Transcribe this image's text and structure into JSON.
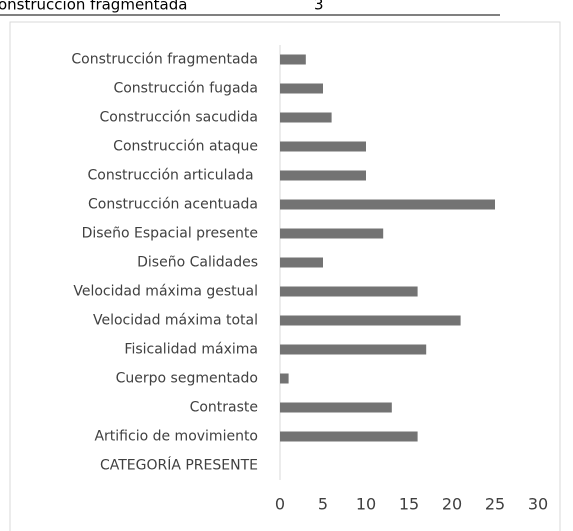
{
  "header": {
    "cells": [
      "onstrucción fragmentada",
      "3"
    ]
  },
  "chart_data": {
    "type": "bar",
    "orientation": "horizontal",
    "categories": [
      "Construcción fragmentada",
      "Construcción fugada",
      "Construcción sacudida",
      "Construcción ataque",
      "Construcción articulada ",
      "Construcción acentuada",
      "Diseño Espacial presente",
      "Diseño Calidades",
      "Velocidad máxima gestual",
      "Velocidad máxima total",
      "Fisicalidad máxima",
      "Cuerpo segmentado",
      "Contraste",
      "Artificio de movimiento",
      "CATEGORÍA PRESENTE"
    ],
    "values": [
      3,
      5,
      6,
      10,
      10,
      25,
      12,
      5,
      16,
      21,
      17,
      1,
      13,
      16,
      null
    ],
    "color": "#737373",
    "xlim": [
      0,
      30
    ],
    "xticks": [
      0,
      5,
      10,
      15,
      20,
      25,
      30
    ],
    "grid": false
  }
}
